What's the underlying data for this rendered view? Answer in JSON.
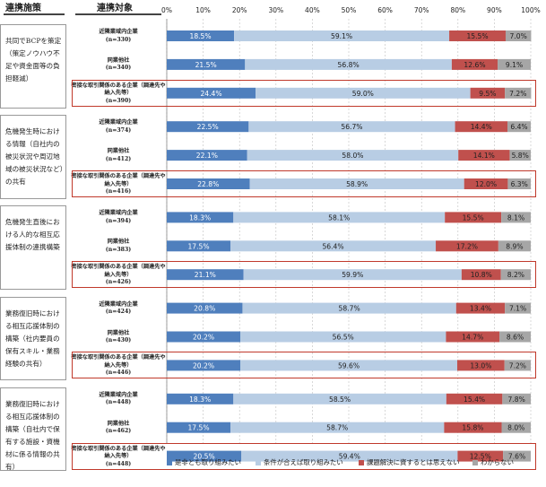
{
  "header": {
    "col_measure": "連携施策",
    "col_target": "連携対象"
  },
  "chart_data": {
    "type": "bar",
    "orientation": "horizontal",
    "stacked": true,
    "xlim": [
      0,
      100
    ],
    "x_ticks": [
      "0%",
      "10%",
      "20%",
      "30%",
      "40%",
      "50%",
      "60%",
      "70%",
      "80%",
      "90%",
      "100%"
    ],
    "grid": true,
    "legend_position": "bottom",
    "series": [
      {
        "name": "是非とも取り組みたい",
        "color": "#4f7fbd"
      },
      {
        "name": "条件が合えば取り組みたい",
        "color": "#b8cde4"
      },
      {
        "name": "課題解決に資するとは思えない",
        "color": "#c0504d"
      },
      {
        "name": "わからない",
        "color": "#a6a6a6"
      }
    ],
    "groups": [
      {
        "measure": "共同でBCPを策定（策定ノウハウ不足や資金面等の負担軽減）",
        "rows": [
          {
            "label": "近隣業域内企業",
            "n": "(n=330)",
            "values": [
              18.5,
              59.1,
              15.5,
              7.0
            ],
            "highlight": false
          },
          {
            "label": "同業他社",
            "n": "(n=340)",
            "values": [
              21.5,
              56.8,
              12.6,
              9.1
            ],
            "highlight": false
          },
          {
            "label": "密接な取引関係のある企業（調達先や納入先等）",
            "n": "(n=390)",
            "values": [
              24.4,
              59.0,
              9.5,
              7.2
            ],
            "highlight": true
          }
        ]
      },
      {
        "measure": "危機発生時における情報（自社内の被災状況や周辺地域の被災状況など）の共有",
        "rows": [
          {
            "label": "近隣業域内企業",
            "n": "(n=374)",
            "values": [
              22.5,
              56.7,
              14.4,
              6.4
            ],
            "highlight": false
          },
          {
            "label": "同業他社",
            "n": "(n=412)",
            "values": [
              22.1,
              58.0,
              14.1,
              5.8
            ],
            "highlight": false
          },
          {
            "label": "密接な取引関係のある企業（調達先や納入先等）",
            "n": "(n=416)",
            "values": [
              22.8,
              58.9,
              12.0,
              6.3
            ],
            "highlight": true
          }
        ]
      },
      {
        "measure": "危機発生直後における人的な相互応援体制の連携構築",
        "rows": [
          {
            "label": "近隣業域内企業",
            "n": "(n=394)",
            "values": [
              18.3,
              58.1,
              15.5,
              8.1
            ],
            "highlight": false
          },
          {
            "label": "同業他社",
            "n": "(n=383)",
            "values": [
              17.5,
              56.4,
              17.2,
              8.9
            ],
            "highlight": false
          },
          {
            "label": "密接な取引関係のある企業（調達先や納入先等）",
            "n": "(n=426)",
            "values": [
              21.1,
              59.9,
              10.8,
              8.2
            ],
            "highlight": true
          }
        ]
      },
      {
        "measure": "業務復旧時における相互応援体制の構築（社内要員の保有スキル・業務経験の共有）",
        "rows": [
          {
            "label": "近隣業域内企業",
            "n": "(n=424)",
            "values": [
              20.8,
              58.7,
              13.4,
              7.1
            ],
            "highlight": false
          },
          {
            "label": "同業他社",
            "n": "(n=430)",
            "values": [
              20.2,
              56.5,
              14.7,
              8.6
            ],
            "highlight": false
          },
          {
            "label": "密接な取引関係のある企業（調達先や納入先等）",
            "n": "(n=446)",
            "values": [
              20.2,
              59.6,
              13.0,
              7.2
            ],
            "highlight": true
          }
        ]
      },
      {
        "measure": "業務復旧時における相互応援体制の構築（自社内で保有する施設・資機材に係る情報の共有）",
        "rows": [
          {
            "label": "近隣業域内企業",
            "n": "(n=448)",
            "values": [
              18.3,
              58.5,
              15.4,
              7.8
            ],
            "highlight": false
          },
          {
            "label": "同業他社",
            "n": "(n=462)",
            "values": [
              17.5,
              58.7,
              15.8,
              8.0
            ],
            "highlight": false
          },
          {
            "label": "密接な取引関係のある企業（調達先や納入先等）",
            "n": "(n=448)",
            "values": [
              20.5,
              59.4,
              12.5,
              7.6
            ],
            "highlight": true
          }
        ]
      }
    ]
  }
}
